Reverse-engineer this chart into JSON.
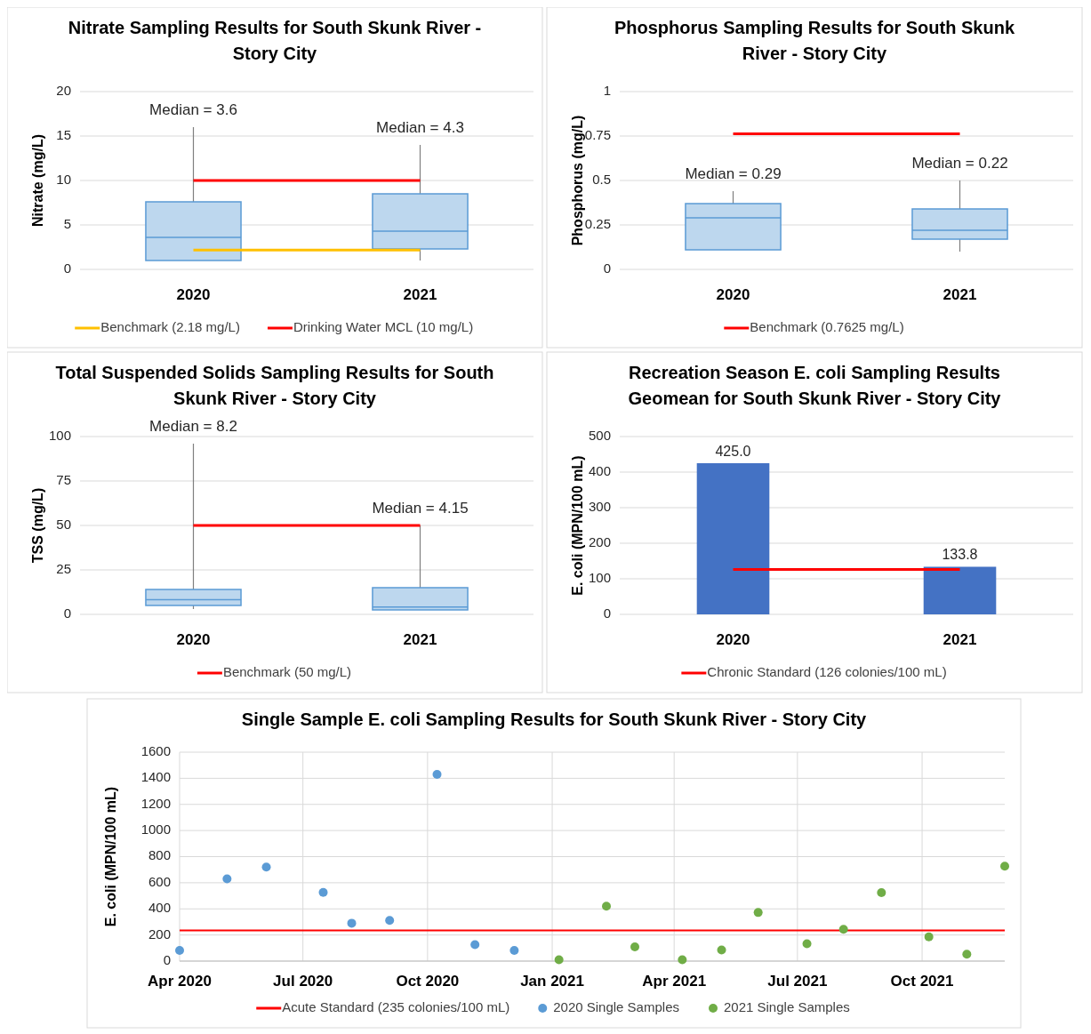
{
  "chart_data": [
    {
      "type": "box",
      "title": "Nitrate Sampling Results for South Skunk River - Story City",
      "ylabel": "Nitrate (mg/L)",
      "categories": [
        "2020",
        "2021"
      ],
      "color": "#bdd7ee",
      "boxes": [
        {
          "low": 1.0,
          "q1": 1.0,
          "median": 3.6,
          "q3": 7.6,
          "high": 16
        },
        {
          "low": 1.0,
          "q1": 2.3,
          "median": 4.3,
          "q3": 8.5,
          "high": 14
        }
      ],
      "ylim": [
        0,
        20
      ],
      "yticks": [
        0,
        5,
        10,
        15,
        20
      ],
      "grid": "y",
      "legend": "bottom",
      "ref_lines": [
        {
          "axis": "y",
          "value": 2.18,
          "label": "Benchmark (2.18 mg/L)",
          "color": "#ffc000"
        },
        {
          "axis": "y",
          "value": 10,
          "label": "Drinking Water MCL (10 mg/L)",
          "color": "#ff0000"
        }
      ],
      "annotations": [
        "Median = 3.6",
        "Median = 4.3"
      ]
    },
    {
      "type": "box",
      "title": "Phosphorus Sampling Results for South Skunk River - Story City",
      "ylabel": "Phosphorus (mg/L)",
      "categories": [
        "2020",
        "2021"
      ],
      "color": "#bdd7ee",
      "boxes": [
        {
          "low": 0.11,
          "q1": 0.11,
          "median": 0.29,
          "q3": 0.37,
          "high": 0.44
        },
        {
          "low": 0.1,
          "q1": 0.17,
          "median": 0.22,
          "q3": 0.34,
          "high": 0.5
        }
      ],
      "ylim": [
        0,
        1
      ],
      "yticks": [
        0,
        0.25,
        0.5,
        0.75,
        1
      ],
      "grid": "y",
      "legend": "bottom",
      "ref_lines": [
        {
          "axis": "y",
          "value": 0.7625,
          "label": "Benchmark (0.7625 mg/L)",
          "color": "#ff0000"
        }
      ],
      "annotations": [
        "Median = 0.29",
        "Median = 0.22"
      ]
    },
    {
      "type": "box",
      "title": "Total Suspended Solids Sampling Results for South Skunk River - Story City",
      "ylabel": "TSS (mg/L)",
      "categories": [
        "2020",
        "2021"
      ],
      "color": "#bdd7ee",
      "boxes": [
        {
          "low": 3,
          "q1": 5,
          "median": 8.2,
          "q3": 14,
          "high": 96
        },
        {
          "low": 2.5,
          "q1": 2.5,
          "median": 4.15,
          "q3": 15,
          "high": 50
        }
      ],
      "ylim": [
        0,
        100
      ],
      "yticks": [
        0,
        25,
        50,
        75,
        100
      ],
      "grid": "y",
      "legend": "bottom",
      "ref_lines": [
        {
          "axis": "y",
          "value": 50,
          "label": "Benchmark (50 mg/L)",
          "color": "#ff0000"
        }
      ],
      "annotations": [
        "Median = 8.2",
        "Median = 4.15"
      ]
    },
    {
      "type": "bar",
      "title": "Recreation Season E. coli Sampling Results Geomean for South Skunk River - Story City",
      "ylabel": "E. coli (MPN/100 mL)",
      "categories": [
        "2020",
        "2021"
      ],
      "values": [
        425.0,
        133.8
      ],
      "value_labels": [
        "425.0",
        "133.8"
      ],
      "color": "#4472c4",
      "ylim": [
        0,
        500
      ],
      "yticks": [
        0,
        100,
        200,
        300,
        400,
        500
      ],
      "grid": "y",
      "legend": "bottom",
      "ref_lines": [
        {
          "axis": "y",
          "value": 126,
          "label": "Chronic Standard (126 colonies/100 mL)",
          "color": "#ff0000"
        }
      ]
    },
    {
      "type": "scatter",
      "title": "Single Sample E. coli Sampling Results for South Skunk River - Story City",
      "ylabel": "E. coli (MPN/100 mL)",
      "xlim": [
        "2020-04-01",
        "2021-12-01"
      ],
      "xticks": [
        {
          "value": "2020-04-01",
          "label": "Apr 2020"
        },
        {
          "value": "2020-07-01",
          "label": "Jul 2020"
        },
        {
          "value": "2020-10-01",
          "label": "Oct 2020"
        },
        {
          "value": "2021-01-01",
          "label": "Jan 2021"
        },
        {
          "value": "2021-04-01",
          "label": "Apr 2021"
        },
        {
          "value": "2021-07-01",
          "label": "Jul 2021"
        },
        {
          "value": "2021-10-01",
          "label": "Oct 2021"
        }
      ],
      "ylim": [
        0,
        1600
      ],
      "yticks": [
        0,
        200,
        400,
        600,
        800,
        1000,
        1200,
        1400,
        1600
      ],
      "grid": true,
      "legend": "bottom",
      "marker": "circle",
      "ref_lines": [
        {
          "axis": "y",
          "value": 235,
          "label": "Acute Standard (235 colonies/100 mL)",
          "color": "#ff0000"
        }
      ],
      "series": [
        {
          "name": "2020 Single Samples",
          "color": "#5b9bd5",
          "x": [
            "2020-04-01",
            "2020-05-06",
            "2020-06-04",
            "2020-07-16",
            "2020-08-06",
            "2020-09-03",
            "2020-10-08",
            "2020-11-05",
            "2020-12-04"
          ],
          "values": [
            82,
            630,
            720,
            526,
            290,
            312,
            1430,
            126,
            82
          ]
        },
        {
          "name": "2021 Single Samples",
          "color": "#70ad47",
          "x": [
            "2021-01-06",
            "2021-02-10",
            "2021-03-03",
            "2021-04-07",
            "2021-05-06",
            "2021-06-02",
            "2021-07-08",
            "2021-08-04",
            "2021-09-01",
            "2021-10-06",
            "2021-11-03",
            "2021-12-01"
          ],
          "values": [
            10,
            420,
            109,
            10,
            85,
            372,
            133,
            244,
            524,
            186,
            53,
            727
          ]
        }
      ]
    }
  ]
}
